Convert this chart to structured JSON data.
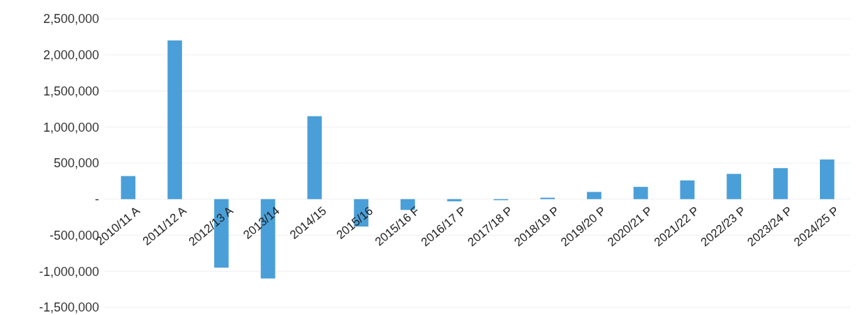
{
  "chart_data": {
    "type": "bar",
    "categories": [
      "2010/11 A",
      "2011/12 A",
      "2012/13 A",
      "2013/14",
      "2014/15",
      "2015/16",
      "2015/16 F",
      "2016/17 P",
      "2017/18 P",
      "2018/19 P",
      "2019/20 P",
      "2020/21 P",
      "2021/22 P",
      "2022/23 P",
      "2023/24 P",
      "2024/25 P"
    ],
    "values": [
      320000,
      2200000,
      -950000,
      -1100000,
      1150000,
      -380000,
      -150000,
      -30000,
      0,
      20000,
      100000,
      170000,
      260000,
      350000,
      430000,
      550000
    ],
    "color": "#4a9fd8",
    "ylim": [
      -1500000,
      2500000
    ],
    "yticks": [
      {
        "value": -1500000,
        "label": "-1,500,000"
      },
      {
        "value": -1000000,
        "label": "-1,000,000"
      },
      {
        "value": -500000,
        "label": "-500,000"
      },
      {
        "value": 0,
        "label": "-"
      },
      {
        "value": 500000,
        "label": "500,000"
      },
      {
        "value": 1000000,
        "label": "1,000,000"
      },
      {
        "value": 1500000,
        "label": "1,500,000"
      },
      {
        "value": 2000000,
        "label": "2,000,000"
      },
      {
        "value": 2500000,
        "label": "2,500,000"
      }
    ],
    "grid": "y"
  }
}
